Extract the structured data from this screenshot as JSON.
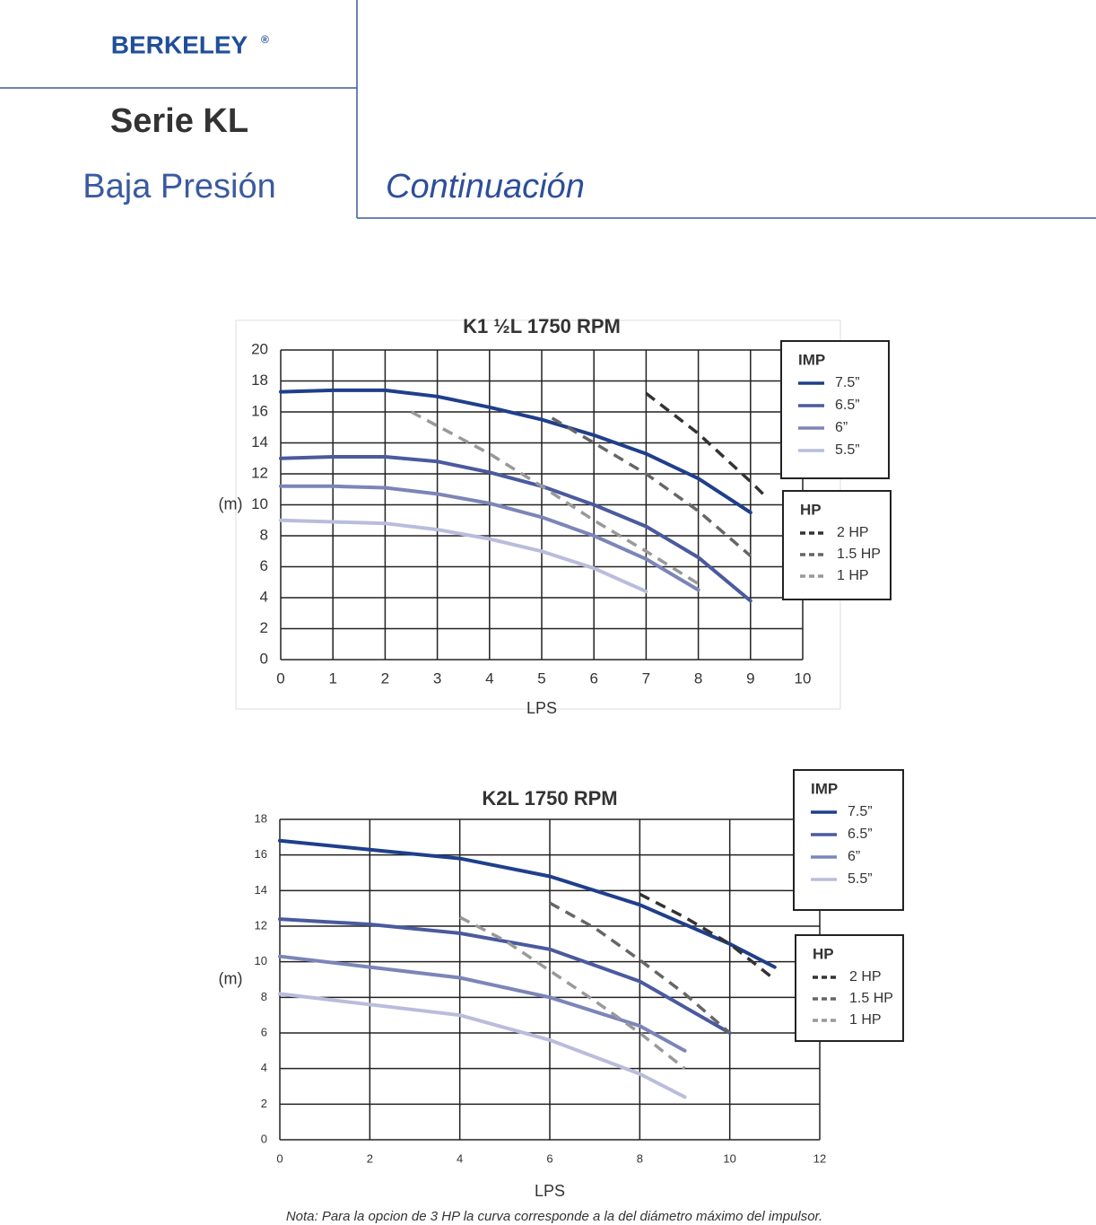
{
  "header": {
    "brand": "BERKELEY",
    "brand_mark": "®",
    "title": "Serie KL",
    "subtitle": "Baja Presión",
    "section": "Continuación"
  },
  "chart_data": [
    {
      "type": "line",
      "title": "K1 ½L 1750 RPM",
      "x_label": "LPS",
      "y_label": "(m)",
      "xlim": [
        0,
        10
      ],
      "xticks": [
        0,
        1,
        2,
        3,
        4,
        5,
        6,
        7,
        8,
        9,
        10
      ],
      "ylim": [
        0,
        20
      ],
      "yticks": [
        0,
        2,
        4,
        6,
        8,
        10,
        12,
        14,
        16,
        18,
        20
      ],
      "grid": true,
      "legend_titles": [
        "IMP",
        "HP"
      ],
      "series": [
        {
          "name": "7.5”",
          "color": "#1f3f8c",
          "dashed": false,
          "x": [
            0,
            1,
            2,
            3,
            4,
            5,
            6,
            7,
            8,
            9
          ],
          "values": [
            17.3,
            17.4,
            17.4,
            17.0,
            16.3,
            15.5,
            14.5,
            13.3,
            11.7,
            9.5
          ]
        },
        {
          "name": "6.5”",
          "color": "#4a5a9e",
          "dashed": false,
          "x": [
            0,
            1,
            2,
            3,
            4,
            5,
            6,
            7,
            8,
            9
          ],
          "values": [
            13.0,
            13.1,
            13.1,
            12.8,
            12.1,
            11.2,
            10.0,
            8.6,
            6.6,
            3.8
          ]
        },
        {
          "name": "6”",
          "color": "#7c85b8",
          "dashed": false,
          "x": [
            0,
            1,
            2,
            3,
            4,
            5,
            6,
            7,
            8
          ],
          "values": [
            11.2,
            11.2,
            11.1,
            10.7,
            10.1,
            9.2,
            8.0,
            6.5,
            4.5
          ]
        },
        {
          "name": "5.5”",
          "color": "#b9bddb",
          "dashed": false,
          "x": [
            0,
            1,
            2,
            3,
            4,
            5,
            6,
            7
          ],
          "values": [
            9.0,
            8.9,
            8.8,
            8.4,
            7.8,
            7.0,
            5.9,
            4.4
          ]
        },
        {
          "name": "2 HP",
          "color": "#333333",
          "dashed": true,
          "x": [
            7,
            8,
            9,
            9.3
          ],
          "values": [
            17.2,
            14.6,
            11.5,
            10.5
          ]
        },
        {
          "name": "1.5 HP",
          "color": "#666666",
          "dashed": true,
          "x": [
            5.2,
            6,
            7,
            8,
            9
          ],
          "values": [
            15.6,
            14.0,
            12.0,
            9.6,
            6.7
          ]
        },
        {
          "name": "1 HP",
          "color": "#999999",
          "dashed": true,
          "x": [
            2.5,
            3,
            4,
            5,
            6,
            7,
            8
          ],
          "values": [
            16.0,
            15.1,
            13.3,
            11.2,
            9.0,
            7.0,
            4.9
          ]
        }
      ]
    },
    {
      "type": "line",
      "title": "K2L 1750 RPM",
      "x_label": "LPS",
      "y_label": "(m)",
      "xlim": [
        0,
        12
      ],
      "xticks": [
        0,
        2,
        4,
        6,
        8,
        10,
        12
      ],
      "ylim": [
        0,
        18
      ],
      "yticks": [
        0,
        2,
        4,
        6,
        8,
        10,
        12,
        14,
        16,
        18
      ],
      "grid": true,
      "legend_titles": [
        "IMP",
        "HP"
      ],
      "series": [
        {
          "name": "7.5”",
          "color": "#1f3f8c",
          "dashed": false,
          "x": [
            0,
            2,
            4,
            6,
            8,
            10,
            11
          ],
          "values": [
            16.8,
            16.3,
            15.8,
            14.8,
            13.2,
            11.0,
            9.7
          ]
        },
        {
          "name": "6.5”",
          "color": "#4a5a9e",
          "dashed": false,
          "x": [
            0,
            2,
            4,
            6,
            8,
            10
          ],
          "values": [
            12.4,
            12.1,
            11.6,
            10.7,
            8.9,
            6.0
          ]
        },
        {
          "name": "6”",
          "color": "#7c85b8",
          "dashed": false,
          "x": [
            0,
            2,
            4,
            6,
            8,
            9
          ],
          "values": [
            10.3,
            9.7,
            9.1,
            8.0,
            6.4,
            5.0
          ]
        },
        {
          "name": "5.5”",
          "color": "#b9bddb",
          "dashed": false,
          "x": [
            0,
            2,
            4,
            6,
            8,
            9
          ],
          "values": [
            8.2,
            7.6,
            7.0,
            5.6,
            3.7,
            2.4
          ]
        },
        {
          "name": "2 HP",
          "color": "#333333",
          "dashed": true,
          "x": [
            8,
            9,
            10,
            11
          ],
          "values": [
            13.8,
            12.5,
            11.0,
            9.0
          ]
        },
        {
          "name": "1.5 HP",
          "color": "#666666",
          "dashed": true,
          "x": [
            6,
            7,
            8,
            9,
            10
          ],
          "values": [
            13.3,
            11.9,
            10.1,
            8.2,
            6.0
          ]
        },
        {
          "name": "1 HP",
          "color": "#999999",
          "dashed": true,
          "x": [
            4,
            5,
            6,
            7,
            8,
            9
          ],
          "values": [
            12.5,
            11.2,
            9.5,
            7.8,
            6.0,
            4.0
          ]
        }
      ]
    }
  ],
  "footnote": "Nota: Para la opcion de 3 HP la curva corresponde a la del diámetro máximo del impulsor."
}
